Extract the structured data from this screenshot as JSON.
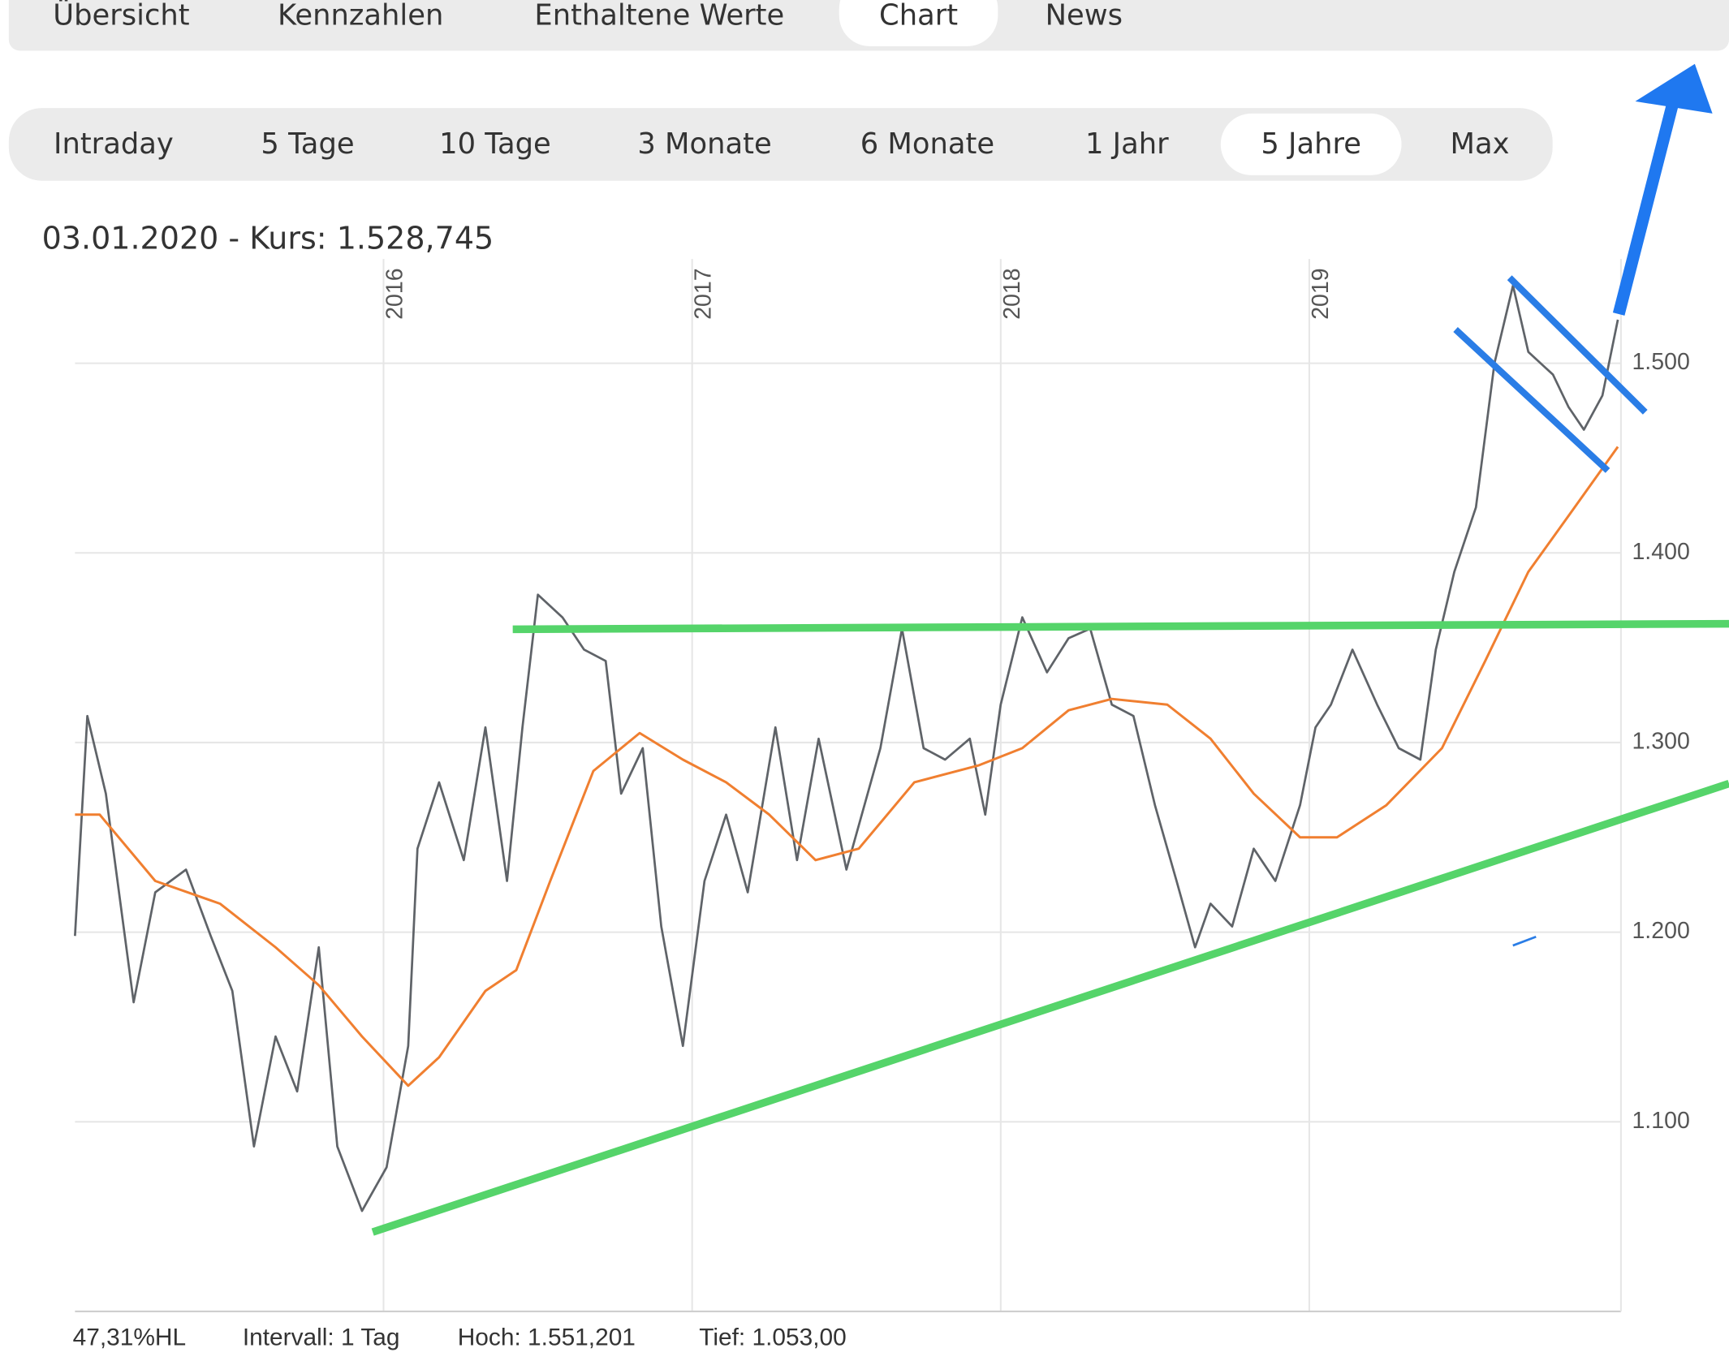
{
  "tabs": [
    "Übersicht",
    "Kennzahlen",
    "Enthaltene Werte",
    "Chart",
    "News"
  ],
  "active_tab": 3,
  "ranges": [
    "Intraday",
    "5 Tage",
    "10 Tage",
    "3 Monate",
    "6 Monate",
    "1 Jahr",
    "5 Jahre",
    "Max"
  ],
  "active_range": 6,
  "quote": "03.01.2020  - Kurs: 1.528,745",
  "footer": [
    "47,31%HL",
    "Intervall: 1 Tag",
    "Hoch: 1.551,201",
    "Tief:  1.053,00"
  ],
  "chart_data": {
    "type": "line",
    "xlim": [
      2015.0,
      2020.01
    ],
    "xticks": [
      2016,
      2017,
      2018,
      2019
    ],
    "ylim": [
      1000,
      1555
    ],
    "yticks": [
      {
        "value": 1100,
        "label": "1.100"
      },
      {
        "value": 1200,
        "label": "1.200"
      },
      {
        "value": 1300,
        "label": "1.300"
      },
      {
        "value": 1400,
        "label": "1.400"
      },
      {
        "value": 1500,
        "label": "1.500"
      }
    ],
    "grid": true,
    "series": [
      {
        "color": "#5f6368",
        "x": [
          2015.0,
          2015.04,
          2015.1,
          2015.19,
          2015.26,
          2015.36,
          2015.44,
          2015.51,
          2015.58,
          2015.65,
          2015.72,
          2015.79,
          2015.85,
          2015.93,
          2016.01,
          2016.08,
          2016.11,
          2016.18,
          2016.26,
          2016.33,
          2016.4,
          2016.45,
          2016.5,
          2016.58,
          2016.65,
          2016.72,
          2016.77,
          2016.84,
          2016.9,
          2016.97,
          2017.04,
          2017.11,
          2017.18,
          2017.27,
          2017.34,
          2017.41,
          2017.5,
          2017.61,
          2017.68,
          2017.75,
          2017.82,
          2017.9,
          2017.95,
          2018.0,
          2018.07,
          2018.15,
          2018.22,
          2018.29,
          2018.36,
          2018.43,
          2018.5,
          2018.57,
          2018.63,
          2018.68,
          2018.75,
          2018.82,
          2018.89,
          2018.97,
          2019.02,
          2019.07,
          2019.14,
          2019.22,
          2019.29,
          2019.36,
          2019.41,
          2019.47,
          2019.54,
          2019.6,
          2019.66,
          2019.71,
          2019.79,
          2019.84,
          2019.89,
          2019.95,
          2020.0
        ],
        "values": [
          1198,
          1314,
          1273,
          1163,
          1221,
          1233,
          1198,
          1169,
          1087,
          1145,
          1116,
          1192,
          1087,
          1053,
          1076,
          1140,
          1244,
          1279,
          1238,
          1308,
          1227,
          1308,
          1378,
          1366,
          1349,
          1343,
          1273,
          1297,
          1203,
          1140,
          1227,
          1262,
          1221,
          1308,
          1238,
          1302,
          1233,
          1297,
          1360,
          1297,
          1291,
          1302,
          1262,
          1320,
          1366,
          1337,
          1355,
          1360,
          1320,
          1314,
          1267,
          1227,
          1192,
          1215,
          1203,
          1244,
          1227,
          1267,
          1308,
          1320,
          1349,
          1320,
          1297,
          1291,
          1349,
          1390,
          1424,
          1500,
          1541,
          1506,
          1494,
          1477,
          1465,
          1483,
          1523
        ]
      },
      {
        "color": "#f07f30",
        "x": [
          2015.0,
          2015.08,
          2015.26,
          2015.47,
          2015.65,
          2015.79,
          2015.93,
          2016.08,
          2016.18,
          2016.33,
          2016.43,
          2016.54,
          2016.68,
          2016.83,
          2016.97,
          2017.11,
          2017.25,
          2017.4,
          2017.54,
          2017.72,
          2017.93,
          2018.07,
          2018.22,
          2018.36,
          2018.54,
          2018.68,
          2018.82,
          2018.97,
          2019.09,
          2019.25,
          2019.43,
          2019.57,
          2019.71,
          2019.86,
          2020.0
        ],
        "values": [
          1262,
          1262,
          1227,
          1215,
          1192,
          1172,
          1145,
          1119,
          1134,
          1169,
          1180,
          1227,
          1285,
          1305,
          1291,
          1279,
          1262,
          1238,
          1244,
          1279,
          1288,
          1297,
          1317,
          1323,
          1320,
          1302,
          1273,
          1250,
          1250,
          1267,
          1297,
          1343,
          1390,
          1424,
          1456
        ]
      }
    ]
  }
}
